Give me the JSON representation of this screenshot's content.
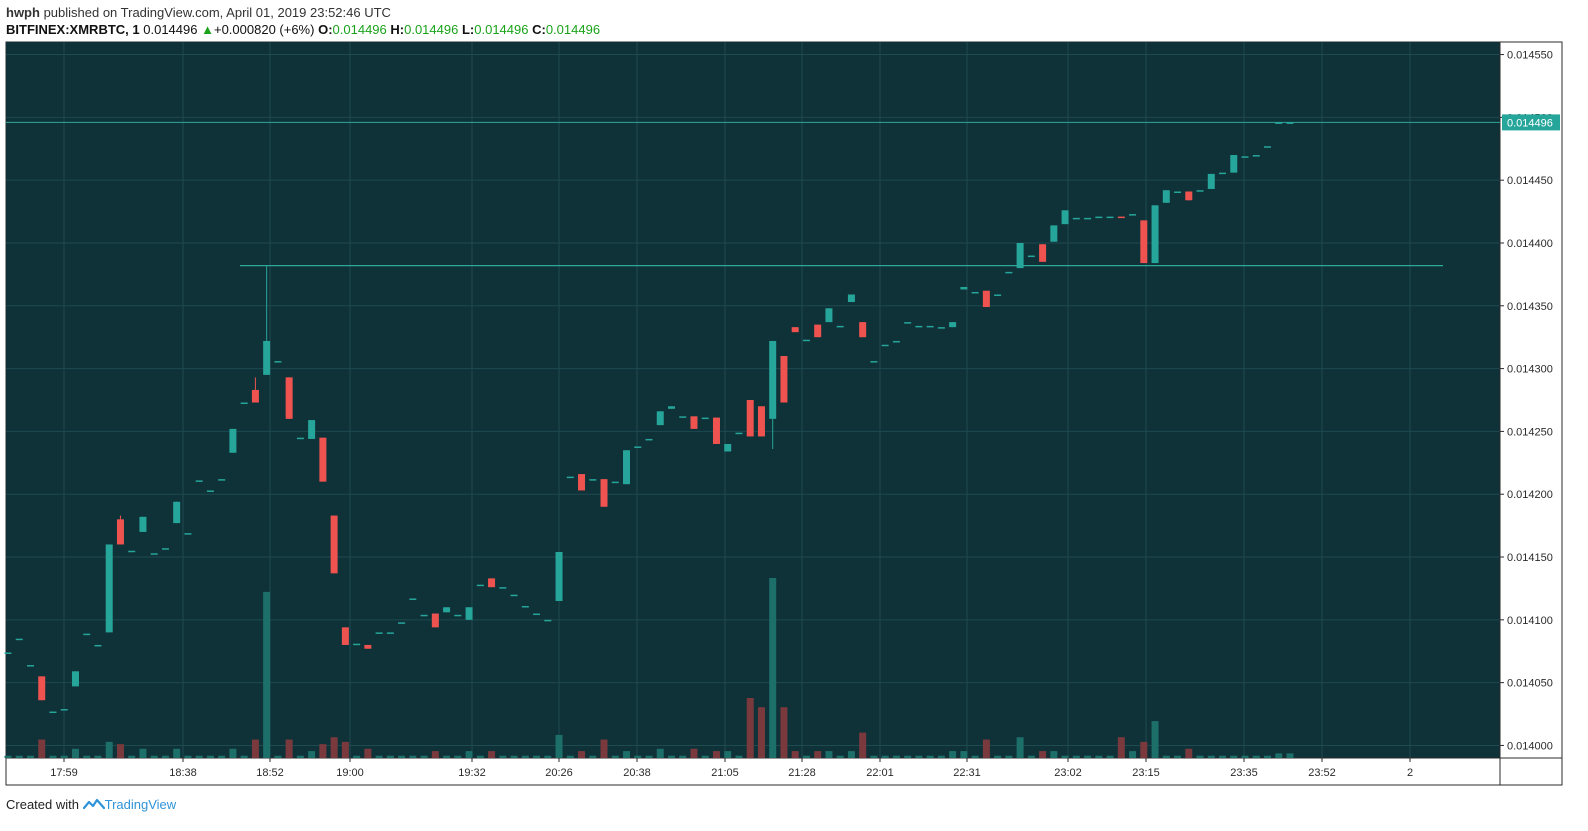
{
  "header": {
    "author": "hwph",
    "published_text": "published on TradingView.com, April 01, 2019 23:52:46 UTC",
    "symbol": "BITFINEX:XMRBTC, 1",
    "last": "0.014496",
    "change_arrow": "▲",
    "change": "+0.000820 (+6%)",
    "o_label": "O:",
    "o_value": "0.014496",
    "h_label": "H:",
    "h_value": "0.014496",
    "l_label": "L:",
    "l_value": "0.014496",
    "c_label": "C:",
    "c_value": "0.014496"
  },
  "footer": {
    "created_with": "Created with",
    "brand": "TradingView"
  },
  "colors": {
    "background": "#0f3138",
    "grid": "#1f4a50",
    "up": "#26a69a",
    "down": "#ef5350",
    "vol_up": "#1d6f6a",
    "vol_down": "#7a3a3d",
    "line": "#2fa899",
    "price_label_bg": "#26a69a",
    "change_green": "#1aa31a"
  },
  "chart_data": {
    "type": "candlestick",
    "y_ticks": [
      "0.014550",
      "0.014500",
      "0.014450",
      "0.014400",
      "0.014350",
      "0.014300",
      "0.014250",
      "0.014200",
      "0.014150",
      "0.014100",
      "0.014050",
      "0.014000"
    ],
    "ylim": [
      0.01399,
      0.01456
    ],
    "x_tick_labels": [
      "17:59",
      "18:38",
      "18:52",
      "19:00",
      "19:32",
      "20:26",
      "20:38",
      "21:05",
      "21:28",
      "22:01",
      "22:31",
      "23:02",
      "23:15",
      "23:35",
      "23:52",
      "2"
    ],
    "last_price_label": "0.014496",
    "last_price": 0.014496,
    "resistance_level": 0.014382,
    "candles": [
      {
        "o": 0.014074,
        "h": 0.014074,
        "l": 0.014074,
        "c": 0.014074,
        "v": 1
      },
      {
        "o": 0.014085,
        "h": 0.014085,
        "l": 0.014085,
        "c": 0.014085,
        "v": 1
      },
      {
        "o": 0.014064,
        "h": 0.014064,
        "l": 0.014064,
        "c": 0.014064,
        "v": 1
      },
      {
        "o": 0.014055,
        "h": 0.014055,
        "l": 0.014036,
        "c": 0.014036,
        "v": 8
      },
      {
        "o": 0.014027,
        "h": 0.014027,
        "l": 0.014027,
        "c": 0.014027,
        "v": 1
      },
      {
        "o": 0.014029,
        "h": 0.014029,
        "l": 0.014029,
        "c": 0.014029,
        "v": 1
      },
      {
        "o": 0.014047,
        "h": 0.014059,
        "l": 0.014047,
        "c": 0.014059,
        "v": 4
      },
      {
        "o": 0.014089,
        "h": 0.014089,
        "l": 0.014089,
        "c": 0.014089,
        "v": 1
      },
      {
        "o": 0.01408,
        "h": 0.01408,
        "l": 0.01408,
        "c": 0.01408,
        "v": 1
      },
      {
        "o": 0.01409,
        "h": 0.01416,
        "l": 0.01409,
        "c": 0.01416,
        "v": 7
      },
      {
        "o": 0.01418,
        "h": 0.014183,
        "l": 0.01416,
        "c": 0.01416,
        "v": 6
      },
      {
        "o": 0.014155,
        "h": 0.014155,
        "l": 0.014155,
        "c": 0.014155,
        "v": 1
      },
      {
        "o": 0.01417,
        "h": 0.014182,
        "l": 0.01417,
        "c": 0.014182,
        "v": 4
      },
      {
        "o": 0.014153,
        "h": 0.014153,
        "l": 0.014153,
        "c": 0.014153,
        "v": 1
      },
      {
        "o": 0.014157,
        "h": 0.014157,
        "l": 0.014157,
        "c": 0.014157,
        "v": 1
      },
      {
        "o": 0.014177,
        "h": 0.014194,
        "l": 0.014177,
        "c": 0.014194,
        "v": 4
      },
      {
        "o": 0.014169,
        "h": 0.014169,
        "l": 0.014169,
        "c": 0.014169,
        "v": 1
      },
      {
        "o": 0.014211,
        "h": 0.014211,
        "l": 0.014211,
        "c": 0.014211,
        "v": 1
      },
      {
        "o": 0.014203,
        "h": 0.014203,
        "l": 0.014203,
        "c": 0.014203,
        "v": 1
      },
      {
        "o": 0.014212,
        "h": 0.014212,
        "l": 0.014212,
        "c": 0.014212,
        "v": 1
      },
      {
        "o": 0.014233,
        "h": 0.014252,
        "l": 0.014233,
        "c": 0.014252,
        "v": 4
      },
      {
        "o": 0.014273,
        "h": 0.014273,
        "l": 0.014273,
        "c": 0.014273,
        "v": 1
      },
      {
        "o": 0.014283,
        "h": 0.014293,
        "l": 0.014273,
        "c": 0.014273,
        "v": 8
      },
      {
        "o": 0.014295,
        "h": 0.014382,
        "l": 0.014295,
        "c": 0.014322,
        "v": 72
      },
      {
        "o": 0.014306,
        "h": 0.014306,
        "l": 0.014306,
        "c": 0.014306,
        "v": 1
      },
      {
        "o": 0.014293,
        "h": 0.014293,
        "l": 0.01426,
        "c": 0.01426,
        "v": 8
      },
      {
        "o": 0.014245,
        "h": 0.014245,
        "l": 0.014245,
        "c": 0.014245,
        "v": 1
      },
      {
        "o": 0.014244,
        "h": 0.014259,
        "l": 0.014244,
        "c": 0.014259,
        "v": 3
      },
      {
        "o": 0.014245,
        "h": 0.014245,
        "l": 0.01421,
        "c": 0.01421,
        "v": 6
      },
      {
        "o": 0.014183,
        "h": 0.014183,
        "l": 0.014137,
        "c": 0.014137,
        "v": 9
      },
      {
        "o": 0.014094,
        "h": 0.014094,
        "l": 0.01408,
        "c": 0.01408,
        "v": 7
      },
      {
        "o": 0.014081,
        "h": 0.014081,
        "l": 0.014081,
        "c": 0.014081,
        "v": 1
      },
      {
        "o": 0.01408,
        "h": 0.01408,
        "l": 0.014077,
        "c": 0.014077,
        "v": 4
      },
      {
        "o": 0.01409,
        "h": 0.01409,
        "l": 0.01409,
        "c": 0.01409,
        "v": 1
      },
      {
        "o": 0.01409,
        "h": 0.01409,
        "l": 0.01409,
        "c": 0.01409,
        "v": 1
      },
      {
        "o": 0.014098,
        "h": 0.014098,
        "l": 0.014098,
        "c": 0.014098,
        "v": 1
      },
      {
        "o": 0.014117,
        "h": 0.014117,
        "l": 0.014117,
        "c": 0.014117,
        "v": 1
      },
      {
        "o": 0.014104,
        "h": 0.014104,
        "l": 0.014104,
        "c": 0.014104,
        "v": 1
      },
      {
        "o": 0.014105,
        "h": 0.014105,
        "l": 0.014094,
        "c": 0.014094,
        "v": 3
      },
      {
        "o": 0.014106,
        "h": 0.01411,
        "l": 0.014106,
        "c": 0.01411,
        "v": 1
      },
      {
        "o": 0.014104,
        "h": 0.014104,
        "l": 0.014104,
        "c": 0.014104,
        "v": 1
      },
      {
        "o": 0.0141,
        "h": 0.01411,
        "l": 0.0141,
        "c": 0.01411,
        "v": 3
      },
      {
        "o": 0.014128,
        "h": 0.014128,
        "l": 0.014128,
        "c": 0.014128,
        "v": 1
      },
      {
        "o": 0.014133,
        "h": 0.014133,
        "l": 0.014126,
        "c": 0.014126,
        "v": 3
      },
      {
        "o": 0.014126,
        "h": 0.014126,
        "l": 0.014126,
        "c": 0.014126,
        "v": 1
      },
      {
        "o": 0.01412,
        "h": 0.01412,
        "l": 0.01412,
        "c": 0.01412,
        "v": 1
      },
      {
        "o": 0.014111,
        "h": 0.014111,
        "l": 0.014111,
        "c": 0.014111,
        "v": 1
      },
      {
        "o": 0.014105,
        "h": 0.014105,
        "l": 0.014105,
        "c": 0.014105,
        "v": 1
      },
      {
        "o": 0.0141,
        "h": 0.0141,
        "l": 0.0141,
        "c": 0.0141,
        "v": 1
      },
      {
        "o": 0.014115,
        "h": 0.014154,
        "l": 0.014115,
        "c": 0.014154,
        "v": 10
      },
      {
        "o": 0.014214,
        "h": 0.014214,
        "l": 0.014214,
        "c": 0.014214,
        "v": 1
      },
      {
        "o": 0.014216,
        "h": 0.014216,
        "l": 0.014203,
        "c": 0.014203,
        "v": 3
      },
      {
        "o": 0.014212,
        "h": 0.014212,
        "l": 0.014212,
        "c": 0.014212,
        "v": 1
      },
      {
        "o": 0.014212,
        "h": 0.014212,
        "l": 0.01419,
        "c": 0.01419,
        "v": 8
      },
      {
        "o": 0.01421,
        "h": 0.01421,
        "l": 0.01421,
        "c": 0.01421,
        "v": 1
      },
      {
        "o": 0.014208,
        "h": 0.014235,
        "l": 0.014208,
        "c": 0.014235,
        "v": 3
      },
      {
        "o": 0.014238,
        "h": 0.014238,
        "l": 0.014238,
        "c": 0.014238,
        "v": 1
      },
      {
        "o": 0.014244,
        "h": 0.014244,
        "l": 0.014244,
        "c": 0.014244,
        "v": 1
      },
      {
        "o": 0.014255,
        "h": 0.014266,
        "l": 0.014255,
        "c": 0.014266,
        "v": 4
      },
      {
        "o": 0.014268,
        "h": 0.01427,
        "l": 0.014268,
        "c": 0.01427,
        "v": 1
      },
      {
        "o": 0.014262,
        "h": 0.014262,
        "l": 0.014262,
        "c": 0.014262,
        "v": 1
      },
      {
        "o": 0.014262,
        "h": 0.014262,
        "l": 0.014252,
        "c": 0.014252,
        "v": 4
      },
      {
        "o": 0.014261,
        "h": 0.014261,
        "l": 0.014261,
        "c": 0.014261,
        "v": 1
      },
      {
        "o": 0.014261,
        "h": 0.014261,
        "l": 0.01424,
        "c": 0.01424,
        "v": 3
      },
      {
        "o": 0.014234,
        "h": 0.01424,
        "l": 0.014234,
        "c": 0.01424,
        "v": 3
      },
      {
        "o": 0.014249,
        "h": 0.014249,
        "l": 0.014249,
        "c": 0.014249,
        "v": 1
      },
      {
        "o": 0.014275,
        "h": 0.014275,
        "l": 0.014246,
        "c": 0.014246,
        "v": 26
      },
      {
        "o": 0.01427,
        "h": 0.01427,
        "l": 0.014246,
        "c": 0.014246,
        "v": 22
      },
      {
        "o": 0.01426,
        "h": 0.014322,
        "l": 0.014236,
        "c": 0.014322,
        "v": 78
      },
      {
        "o": 0.01431,
        "h": 0.01431,
        "l": 0.014273,
        "c": 0.014273,
        "v": 22
      },
      {
        "o": 0.014333,
        "h": 0.014333,
        "l": 0.014329,
        "c": 0.014329,
        "v": 3
      },
      {
        "o": 0.014323,
        "h": 0.014323,
        "l": 0.014323,
        "c": 0.014323,
        "v": 1
      },
      {
        "o": 0.014335,
        "h": 0.014335,
        "l": 0.014325,
        "c": 0.014325,
        "v": 3
      },
      {
        "o": 0.014337,
        "h": 0.014348,
        "l": 0.014337,
        "c": 0.014348,
        "v": 3
      },
      {
        "o": 0.014334,
        "h": 0.014334,
        "l": 0.014334,
        "c": 0.014334,
        "v": 1
      },
      {
        "o": 0.014353,
        "h": 0.014359,
        "l": 0.014353,
        "c": 0.014359,
        "v": 3
      },
      {
        "o": 0.014337,
        "h": 0.014337,
        "l": 0.014325,
        "c": 0.014325,
        "v": 11
      },
      {
        "o": 0.014306,
        "h": 0.014306,
        "l": 0.014306,
        "c": 0.014306,
        "v": 1
      },
      {
        "o": 0.014319,
        "h": 0.014319,
        "l": 0.014319,
        "c": 0.014319,
        "v": 1
      },
      {
        "o": 0.014322,
        "h": 0.014322,
        "l": 0.014322,
        "c": 0.014322,
        "v": 1
      },
      {
        "o": 0.014337,
        "h": 0.014337,
        "l": 0.014337,
        "c": 0.014337,
        "v": 1
      },
      {
        "o": 0.014334,
        "h": 0.014334,
        "l": 0.014334,
        "c": 0.014334,
        "v": 1
      },
      {
        "o": 0.014334,
        "h": 0.014334,
        "l": 0.014334,
        "c": 0.014334,
        "v": 1
      },
      {
        "o": 0.014333,
        "h": 0.014333,
        "l": 0.014333,
        "c": 0.014333,
        "v": 1
      },
      {
        "o": 0.014333,
        "h": 0.014337,
        "l": 0.014333,
        "c": 0.014337,
        "v": 3
      },
      {
        "o": 0.014363,
        "h": 0.014365,
        "l": 0.014363,
        "c": 0.014365,
        "v": 3
      },
      {
        "o": 0.014361,
        "h": 0.014361,
        "l": 0.014361,
        "c": 0.014361,
        "v": 1
      },
      {
        "o": 0.014362,
        "h": 0.014362,
        "l": 0.014349,
        "c": 0.014349,
        "v": 8
      },
      {
        "o": 0.014359,
        "h": 0.014359,
        "l": 0.014359,
        "c": 0.014359,
        "v": 1
      },
      {
        "o": 0.014377,
        "h": 0.014377,
        "l": 0.014377,
        "c": 0.014377,
        "v": 1
      },
      {
        "o": 0.01438,
        "h": 0.0144,
        "l": 0.01438,
        "c": 0.0144,
        "v": 9
      },
      {
        "o": 0.01439,
        "h": 0.01439,
        "l": 0.01439,
        "c": 0.01439,
        "v": 1
      },
      {
        "o": 0.014399,
        "h": 0.014399,
        "l": 0.014385,
        "c": 0.014385,
        "v": 3
      },
      {
        "o": 0.014401,
        "h": 0.014414,
        "l": 0.014401,
        "c": 0.014414,
        "v": 3
      },
      {
        "o": 0.014415,
        "h": 0.014426,
        "l": 0.014415,
        "c": 0.014426,
        "v": 1
      },
      {
        "o": 0.01442,
        "h": 0.01442,
        "l": 0.01442,
        "c": 0.01442,
        "v": 1
      },
      {
        "o": 0.01442,
        "h": 0.01442,
        "l": 0.01442,
        "c": 0.01442,
        "v": 1
      },
      {
        "o": 0.014421,
        "h": 0.014421,
        "l": 0.014421,
        "c": 0.014421,
        "v": 1
      },
      {
        "o": 0.014421,
        "h": 0.014421,
        "l": 0.014421,
        "c": 0.014421,
        "v": 1
      },
      {
        "o": 0.014421,
        "h": 0.014421,
        "l": 0.01442,
        "c": 0.01442,
        "v": 9
      },
      {
        "o": 0.014423,
        "h": 0.014423,
        "l": 0.014423,
        "c": 0.014423,
        "v": 3
      },
      {
        "o": 0.014418,
        "h": 0.014418,
        "l": 0.014384,
        "c": 0.014384,
        "v": 7
      },
      {
        "o": 0.014384,
        "h": 0.01443,
        "l": 0.014384,
        "c": 0.01443,
        "v": 16
      },
      {
        "o": 0.014432,
        "h": 0.014442,
        "l": 0.014432,
        "c": 0.014442,
        "v": 1
      },
      {
        "o": 0.014441,
        "h": 0.014441,
        "l": 0.014441,
        "c": 0.014441,
        "v": 1
      },
      {
        "o": 0.014441,
        "h": 0.014441,
        "l": 0.014434,
        "c": 0.014434,
        "v": 4
      },
      {
        "o": 0.014442,
        "h": 0.014442,
        "l": 0.014442,
        "c": 0.014442,
        "v": 1
      },
      {
        "o": 0.014443,
        "h": 0.014455,
        "l": 0.014443,
        "c": 0.014455,
        "v": 1
      },
      {
        "o": 0.014456,
        "h": 0.014456,
        "l": 0.014456,
        "c": 0.014456,
        "v": 1
      },
      {
        "o": 0.014456,
        "h": 0.01447,
        "l": 0.014456,
        "c": 0.01447,
        "v": 1
      },
      {
        "o": 0.014469,
        "h": 0.014469,
        "l": 0.014469,
        "c": 0.014469,
        "v": 1
      },
      {
        "o": 0.01447,
        "h": 0.01447,
        "l": 0.01447,
        "c": 0.01447,
        "v": 1
      },
      {
        "o": 0.014477,
        "h": 0.014477,
        "l": 0.014477,
        "c": 0.014477,
        "v": 1
      },
      {
        "o": 0.014496,
        "h": 0.014496,
        "l": 0.014496,
        "c": 0.014496,
        "v": 2
      },
      {
        "o": 0.014496,
        "h": 0.014496,
        "l": 0.014496,
        "c": 0.014496,
        "v": 2
      }
    ]
  }
}
